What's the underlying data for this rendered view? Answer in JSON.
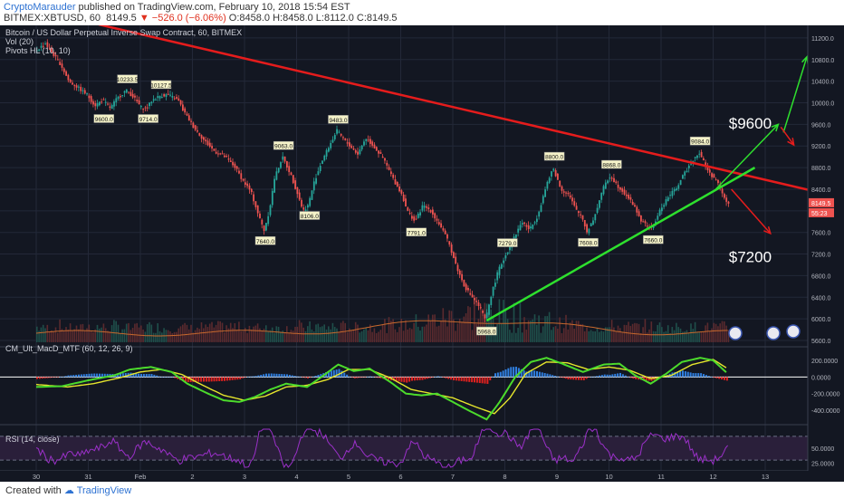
{
  "header": {
    "author": "CryptoMarauder",
    "published_text": "published on TradingView.com, February 10, 2018 15:54 EST",
    "symbol_line": "BITMEX:XBTUSD, 60",
    "last_price": "8149.5",
    "change": "−526.0 (−6.06%)",
    "ohlc": "O:8458.0 H:8458.0 L:8112.0 C:8149.5"
  },
  "footer": {
    "created_with": "Created with",
    "brand": "TradingView"
  },
  "colors": {
    "background": "#131722",
    "grid": "#232838",
    "candle_up": "#26a69a",
    "candle_down": "#ef5350",
    "resistance_line": "#e51c1c",
    "support_line": "#2ee02e",
    "volume_ma": "#c8692d",
    "macd_line": "#4cdb2c",
    "signal_line": "#e6e62c",
    "rsi_line": "#9b30c9"
  },
  "chart_data": {
    "type": "candlestick",
    "instrument": "Bitcoin / US Dollar Perpetual Inverse Swap Contract, 60, BITMEX",
    "overlay_labels": [
      "Vol (20)",
      "Pivots HL (10, 10)"
    ],
    "ylim": [
      5600,
      11400
    ],
    "y_ticks": [
      "11200.0",
      "10800.0",
      "10400.0",
      "10000.0",
      "9600.0",
      "9200.0",
      "8800.0",
      "8400.0",
      "8000.0",
      "7600.0",
      "7200.0",
      "6800.0",
      "6400.0",
      "6000.0",
      "5600.0"
    ],
    "x_ticks": [
      "30",
      "31",
      "Feb",
      "2",
      "3",
      "4",
      "5",
      "6",
      "7",
      "8",
      "9",
      "10",
      "11",
      "12",
      "13"
    ],
    "price_path": [
      [
        0,
        10950
      ],
      [
        0.2,
        11100
      ],
      [
        0.35,
        10900
      ],
      [
        0.5,
        10700
      ],
      [
        0.65,
        10400
      ],
      [
        0.8,
        10300
      ],
      [
        1.0,
        10150
      ],
      [
        1.15,
        9950
      ],
      [
        1.3,
        10050
      ],
      [
        1.45,
        9900
      ],
      [
        1.55,
        10050
      ],
      [
        1.75,
        10233
      ],
      [
        1.9,
        10100
      ],
      [
        2.05,
        9900
      ],
      [
        2.15,
        9900
      ],
      [
        2.25,
        10050
      ],
      [
        2.4,
        10127
      ],
      [
        2.55,
        10150
      ],
      [
        2.75,
        10050
      ],
      [
        2.85,
        9850
      ],
      [
        3.05,
        9550
      ],
      [
        3.25,
        9300
      ],
      [
        3.45,
        9100
      ],
      [
        3.65,
        9000
      ],
      [
        3.85,
        8800
      ],
      [
        4.0,
        8550
      ],
      [
        4.15,
        8350
      ],
      [
        4.3,
        7900
      ],
      [
        4.4,
        7640
      ],
      [
        4.5,
        8000
      ],
      [
        4.6,
        8600
      ],
      [
        4.75,
        9000
      ],
      [
        4.9,
        8700
      ],
      [
        5.05,
        8300
      ],
      [
        5.15,
        8000
      ],
      [
        5.25,
        8106
      ],
      [
        5.35,
        8500
      ],
      [
        5.5,
        8900
      ],
      [
        5.65,
        9200
      ],
      [
        5.8,
        9483
      ],
      [
        5.95,
        9300
      ],
      [
        6.1,
        9150
      ],
      [
        6.2,
        9050
      ],
      [
        6.35,
        9350
      ],
      [
        6.5,
        9200
      ],
      [
        6.7,
        8950
      ],
      [
        6.9,
        8550
      ],
      [
        7.05,
        8300
      ],
      [
        7.15,
        8000
      ],
      [
        7.3,
        7800
      ],
      [
        7.45,
        8100
      ],
      [
        7.6,
        8000
      ],
      [
        7.8,
        7700
      ],
      [
        7.95,
        7400
      ],
      [
        8.1,
        6950
      ],
      [
        8.25,
        6600
      ],
      [
        8.4,
        6400
      ],
      [
        8.55,
        6200
      ],
      [
        8.65,
        5968
      ],
      [
        8.75,
        6400
      ],
      [
        8.9,
        6900
      ],
      [
        9.05,
        7200
      ],
      [
        9.2,
        7500
      ],
      [
        9.35,
        7800
      ],
      [
        9.5,
        7650
      ],
      [
        9.65,
        7900
      ],
      [
        9.8,
        8400
      ],
      [
        9.95,
        8800
      ],
      [
        10.1,
        8400
      ],
      [
        10.25,
        8300
      ],
      [
        10.4,
        8000
      ],
      [
        10.5,
        7900
      ],
      [
        10.6,
        7608
      ],
      [
        10.75,
        7900
      ],
      [
        10.9,
        8400
      ],
      [
        11.05,
        8650
      ],
      [
        11.2,
        8450
      ],
      [
        11.35,
        8300
      ],
      [
        11.5,
        8100
      ],
      [
        11.65,
        7800
      ],
      [
        11.85,
        7660
      ],
      [
        12.0,
        8000
      ],
      [
        12.15,
        8250
      ],
      [
        12.3,
        8400
      ],
      [
        12.45,
        8650
      ],
      [
        12.6,
        8900
      ],
      [
        12.75,
        9084
      ],
      [
        12.85,
        8900
      ],
      [
        12.95,
        8700
      ],
      [
        13.05,
        8600
      ],
      [
        13.15,
        8450
      ],
      [
        13.28,
        8150
      ]
    ],
    "pivot_labels": [
      {
        "text": "10233.5",
        "x": 1.75,
        "y": 10233,
        "pos": "above"
      },
      {
        "text": "10127.5",
        "x": 2.4,
        "y": 10127,
        "pos": "above"
      },
      {
        "text": "9600.0",
        "x": 1.3,
        "y": 9900,
        "pos": "below"
      },
      {
        "text": "9714.0",
        "x": 2.15,
        "y": 9900,
        "pos": "below"
      },
      {
        "text": "9063.0",
        "x": 4.75,
        "y": 9000,
        "pos": "above"
      },
      {
        "text": "7640.0",
        "x": 4.4,
        "y": 7640,
        "pos": "below"
      },
      {
        "text": "8106.0",
        "x": 5.25,
        "y": 8106,
        "pos": "below"
      },
      {
        "text": "9483.0",
        "x": 5.8,
        "y": 9483,
        "pos": "above"
      },
      {
        "text": "7791.0",
        "x": 7.3,
        "y": 7800,
        "pos": "below"
      },
      {
        "text": "5968.0",
        "x": 8.65,
        "y": 5968,
        "pos": "below"
      },
      {
        "text": "7279.0",
        "x": 9.05,
        "y": 7200,
        "pos": "above"
      },
      {
        "text": "8800.0",
        "x": 9.95,
        "y": 8800,
        "pos": "above"
      },
      {
        "text": "7608.0",
        "x": 10.6,
        "y": 7608,
        "pos": "below"
      },
      {
        "text": "8868.0",
        "x": 11.05,
        "y": 8650,
        "pos": "above"
      },
      {
        "text": "7660.0",
        "x": 11.85,
        "y": 7660,
        "pos": "below"
      },
      {
        "text": "9084.0",
        "x": 12.75,
        "y": 9084,
        "pos": "above"
      }
    ],
    "trendlines": [
      {
        "name": "resistance",
        "x1": 1.2,
        "y1": 11450,
        "x2": 15.0,
        "y2": 8350
      },
      {
        "name": "support",
        "x1": 8.65,
        "y1": 5968,
        "x2": 13.8,
        "y2": 8800
      }
    ],
    "projection_arrows": [
      {
        "color": "green",
        "x1": 13.05,
        "y1": 8400,
        "x2": 14.25,
        "y2": 9600
      },
      {
        "color": "green",
        "x1": 14.35,
        "y1": 9450,
        "x2": 14.8,
        "y2": 10850
      },
      {
        "color": "red",
        "x1": 14.3,
        "y1": 9550,
        "x2": 14.55,
        "y2": 9220
      },
      {
        "color": "red",
        "x1": 13.35,
        "y1": 8400,
        "x2": 14.1,
        "y2": 7580
      }
    ],
    "annotations": [
      {
        "text": "$9600",
        "x": 13.3,
        "y": 9620
      },
      {
        "text": "$7200",
        "x": 13.3,
        "y": 7150
      }
    ],
    "price_badges": [
      "8149.5",
      "55:23"
    ],
    "macd": {
      "label": "CM_Ult_MacD_MTF (60, 12, 26, 9)",
      "ylim": [
        -540,
        330
      ],
      "y_ticks": [
        "200.0000",
        "0.0000",
        "-200.0000",
        "-400.0000"
      ],
      "macd_path": [
        [
          0,
          -120
        ],
        [
          0.5,
          -110
        ],
        [
          1.0,
          -40
        ],
        [
          1.5,
          20
        ],
        [
          1.8,
          90
        ],
        [
          2.2,
          120
        ],
        [
          2.6,
          60
        ],
        [
          2.9,
          -80
        ],
        [
          3.3,
          -200
        ],
        [
          3.6,
          -280
        ],
        [
          3.9,
          -300
        ],
        [
          4.2,
          -240
        ],
        [
          4.5,
          -150
        ],
        [
          4.8,
          -80
        ],
        [
          5.2,
          -120
        ],
        [
          5.5,
          10
        ],
        [
          5.8,
          150
        ],
        [
          6.1,
          70
        ],
        [
          6.4,
          100
        ],
        [
          6.8,
          -60
        ],
        [
          7.1,
          -200
        ],
        [
          7.4,
          -220
        ],
        [
          7.7,
          -200
        ],
        [
          8.0,
          -300
        ],
        [
          8.3,
          -400
        ],
        [
          8.65,
          -510
        ],
        [
          8.9,
          -300
        ],
        [
          9.2,
          0
        ],
        [
          9.5,
          180
        ],
        [
          9.8,
          230
        ],
        [
          10.1,
          160
        ],
        [
          10.5,
          60
        ],
        [
          10.9,
          150
        ],
        [
          11.2,
          160
        ],
        [
          11.5,
          20
        ],
        [
          11.8,
          -80
        ],
        [
          12.1,
          40
        ],
        [
          12.4,
          180
        ],
        [
          12.75,
          230
        ],
        [
          13.0,
          200
        ],
        [
          13.28,
          40
        ]
      ],
      "signal_path": [
        [
          0,
          -90
        ],
        [
          0.6,
          -120
        ],
        [
          1.1,
          -80
        ],
        [
          1.6,
          -10
        ],
        [
          2.0,
          60
        ],
        [
          2.4,
          90
        ],
        [
          2.8,
          30
        ],
        [
          3.2,
          -100
        ],
        [
          3.6,
          -220
        ],
        [
          4.0,
          -280
        ],
        [
          4.4,
          -230
        ],
        [
          4.8,
          -120
        ],
        [
          5.2,
          -100
        ],
        [
          5.6,
          -30
        ],
        [
          6.0,
          90
        ],
        [
          6.4,
          90
        ],
        [
          6.8,
          -10
        ],
        [
          7.2,
          -150
        ],
        [
          7.6,
          -200
        ],
        [
          8.0,
          -250
        ],
        [
          8.4,
          -350
        ],
        [
          8.8,
          -440
        ],
        [
          9.1,
          -250
        ],
        [
          9.4,
          40
        ],
        [
          9.8,
          180
        ],
        [
          10.2,
          170
        ],
        [
          10.6,
          90
        ],
        [
          11.0,
          120
        ],
        [
          11.4,
          80
        ],
        [
          11.8,
          -20
        ],
        [
          12.2,
          20
        ],
        [
          12.6,
          150
        ],
        [
          13.0,
          210
        ],
        [
          13.28,
          100
        ]
      ]
    },
    "rsi": {
      "label": "RSI (14, close)",
      "ylim": [
        15,
        85
      ],
      "y_ticks": [
        "50.0000",
        "25.0000"
      ],
      "upper_band": 70,
      "lower_band": 30
    }
  }
}
